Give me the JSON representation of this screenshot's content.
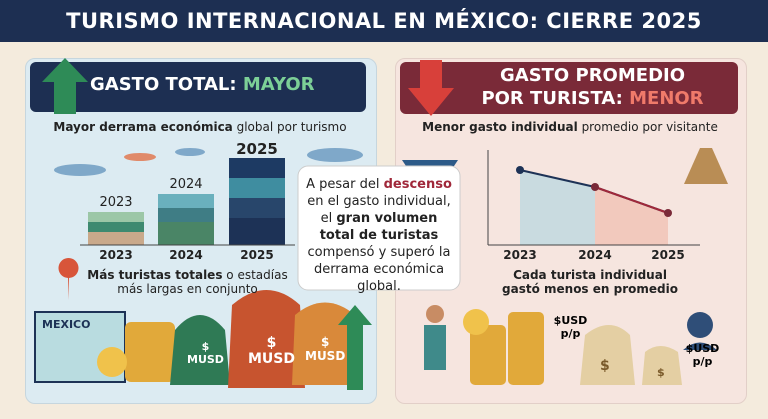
{
  "header": {
    "title": "TURISMO INTERNACIONAL EN MÉXICO: CIERRE 2025"
  },
  "left": {
    "heading": {
      "prefix": "GASTO TOTAL:",
      "emphasis": "MAYOR"
    },
    "subtitle": {
      "bold": "Mayor derrama económica",
      "rest": "global por turismo"
    },
    "bar_top_labels": [
      "2023",
      "2024",
      "2025"
    ],
    "bar_axis_labels": [
      "2023",
      "2024",
      "2025"
    ],
    "caption": {
      "bold": "Más turistas totales",
      "rest": "o estadías más largas en conjunto"
    },
    "map_label": "MEXICO",
    "bag_labels": [
      "$",
      "MUSD",
      "$",
      "MUSD",
      "$",
      "MUSD"
    ]
  },
  "center": {
    "note": [
      "A pesar del",
      "descenso",
      "en el gasto individual, el",
      "gran volumen total de turistas",
      "compensó y superó la derrama económica global."
    ]
  },
  "right": {
    "heading": {
      "line1": "GASTO PROMEDIO",
      "line2": "POR TURISTA:",
      "emphasis": "MENOR"
    },
    "subtitle": {
      "bold": "Menor gasto individual",
      "rest": "promedio por visitante"
    },
    "chart_categories": [
      "2023",
      "2024",
      "2025"
    ],
    "caption": "Cada turista individual gastó menos en promedio",
    "coin_label": "$USD p/p",
    "person_label": "$USD p/p",
    "bag_symbols": [
      "$",
      "$"
    ]
  }
}
